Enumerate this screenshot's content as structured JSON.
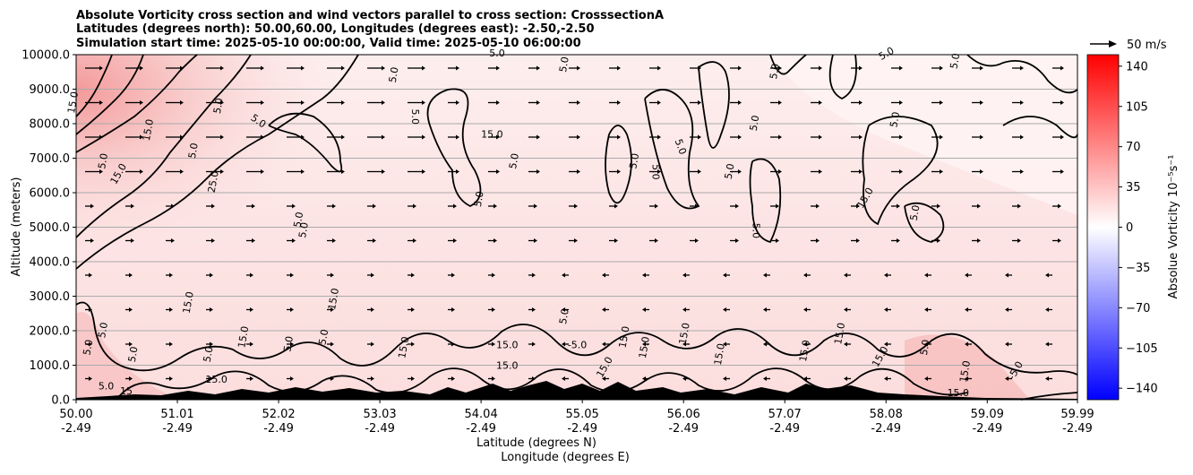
{
  "chart_data": {
    "type": "heatmap",
    "title": [
      "Absolute Vorticity cross section and wind vectors parallel to cross section: CrosssectionA",
      "Latitudes (degrees north): 50.00,60.00, Longitudes (degrees east): -2.50,-2.50",
      "Simulation start time: 2025-05-10 00:00:00, Valid time: 2025-05-10 06:00:00"
    ],
    "xlabel": "Latitude (degrees N)",
    "xlabel2": "Longitude (degrees E)",
    "ylabel": "Altitude (meters)",
    "xlim": [
      50.0,
      59.99
    ],
    "ylim": [
      0,
      10000
    ],
    "x_ticks": [
      {
        "lat": "50.00",
        "lon": "-2.49",
        "value": 50.0
      },
      {
        "lat": "51.01",
        "lon": "-2.49",
        "value": 51.01
      },
      {
        "lat": "52.02",
        "lon": "-2.49",
        "value": 52.02
      },
      {
        "lat": "53.03",
        "lon": "-2.49",
        "value": 53.03
      },
      {
        "lat": "54.04",
        "lon": "-2.49",
        "value": 54.04
      },
      {
        "lat": "55.05",
        "lon": "-2.49",
        "value": 55.05
      },
      {
        "lat": "56.06",
        "lon": "-2.49",
        "value": 56.06
      },
      {
        "lat": "57.07",
        "lon": "-2.49",
        "value": 57.07
      },
      {
        "lat": "58.08",
        "lon": "-2.49",
        "value": 58.08
      },
      {
        "lat": "59.09",
        "lon": "-2.49",
        "value": 59.09
      },
      {
        "lat": "59.99",
        "lon": "-2.49",
        "value": 59.99
      }
    ],
    "y_ticks": [
      "0.0",
      "1000.0",
      "2000.0",
      "3000.0",
      "4000.0",
      "5000.0",
      "6000.0",
      "7000.0",
      "8000.0",
      "9000.0",
      "10000.0"
    ],
    "y_tick_values": [
      0,
      1000,
      2000,
      3000,
      4000,
      5000,
      6000,
      7000,
      8000,
      9000,
      10000
    ],
    "grid": "horizontal",
    "colorbar": {
      "label": "Absolue Vorticity 10⁻⁵s⁻¹",
      "min": -150,
      "max": 150,
      "colormap": "bwr",
      "ticks": [
        "140",
        "105",
        "70",
        "35",
        "0",
        "−35",
        "−70",
        "−105",
        "−140"
      ],
      "tick_values": [
        140,
        105,
        70,
        35,
        0,
        -35,
        -70,
        -105,
        -140
      ]
    },
    "quiver_key": {
      "label": "50 m/s",
      "speed": 50
    },
    "contour_levels_labeled": [
      "5.0",
      "15.0",
      "25.0",
      "-5.0"
    ],
    "contour_labels": [
      {
        "text": "5.0",
        "x": 53.2,
        "y": 9400,
        "rot": -80
      },
      {
        "text": "5.0",
        "x": 51.8,
        "y": 8000,
        "rot": 35
      },
      {
        "text": "5.0",
        "x": 53.35,
        "y": 8200,
        "rot": 90
      },
      {
        "text": "15.0",
        "x": 54.15,
        "y": 7600,
        "rot": 0
      },
      {
        "text": "5.0",
        "x": 54.9,
        "y": 9700,
        "rot": -80
      },
      {
        "text": "5.0",
        "x": 54.2,
        "y": 9950,
        "rot": 0
      },
      {
        "text": "5.0",
        "x": 54.4,
        "y": 6900,
        "rot": -80
      },
      {
        "text": "5.0",
        "x": 54.05,
        "y": 5800,
        "rot": -80
      },
      {
        "text": "5.0",
        "x": 55.75,
        "y": 6600,
        "rot": 90
      },
      {
        "text": "5.0",
        "x": 55.6,
        "y": 6900,
        "rot": -80
      },
      {
        "text": "5.0",
        "x": 56.0,
        "y": 7300,
        "rot": 70
      },
      {
        "text": "5.0",
        "x": 56.55,
        "y": 6600,
        "rot": -80
      },
      {
        "text": "5.0",
        "x": 56.8,
        "y": 8000,
        "rot": -80
      },
      {
        "text": "5.0",
        "x": 57.0,
        "y": 9500,
        "rot": -80
      },
      {
        "text": "5.0",
        "x": 58.1,
        "y": 9950,
        "rot": -30
      },
      {
        "text": "5.0",
        "x": 58.8,
        "y": 9800,
        "rot": -80
      },
      {
        "text": "5.0",
        "x": 58.2,
        "y": 8100,
        "rot": -80
      },
      {
        "text": "15.0",
        "x": 57.9,
        "y": 5800,
        "rot": -60
      },
      {
        "text": "5.0",
        "x": 58.4,
        "y": 5400,
        "rot": -80
      },
      {
        "text": "5.0",
        "x": 56.75,
        "y": 4900,
        "rot": 90
      },
      {
        "text": "5.0",
        "x": 51.45,
        "y": 8500,
        "rot": -80
      },
      {
        "text": "15.0",
        "x": 50.75,
        "y": 7800,
        "rot": -80
      },
      {
        "text": "5.0",
        "x": 51.2,
        "y": 7200,
        "rot": -80
      },
      {
        "text": "5.0",
        "x": 50.3,
        "y": 6900,
        "rot": -80
      },
      {
        "text": "15.0",
        "x": 50.45,
        "y": 6500,
        "rot": -60
      },
      {
        "text": "25.0",
        "x": 51.4,
        "y": 6300,
        "rot": -80
      },
      {
        "text": "5.0",
        "x": 52.25,
        "y": 5200,
        "rot": -80
      },
      {
        "text": "5.0",
        "x": 52.3,
        "y": 4900,
        "rot": -80
      },
      {
        "text": "15.0",
        "x": 51.15,
        "y": 2800,
        "rot": -80
      },
      {
        "text": "15.0",
        "x": 52.6,
        "y": 2900,
        "rot": -80
      },
      {
        "text": "5.0",
        "x": 50.3,
        "y": 2000,
        "rot": -80
      },
      {
        "text": "5.0",
        "x": 50.15,
        "y": 1500,
        "rot": -80
      },
      {
        "text": "5.0",
        "x": 50.6,
        "y": 1300,
        "rot": -80
      },
      {
        "text": "15.0",
        "x": 51.7,
        "y": 1800,
        "rot": -80
      },
      {
        "text": "5.0",
        "x": 51.35,
        "y": 1300,
        "rot": -80
      },
      {
        "text": "5.0",
        "x": 52.15,
        "y": 1600,
        "rot": -80
      },
      {
        "text": "5.0",
        "x": 52.5,
        "y": 1800,
        "rot": -80
      },
      {
        "text": "15.0",
        "x": 53.3,
        "y": 1500,
        "rot": -80
      },
      {
        "text": "15.0",
        "x": 54.3,
        "y": 1500,
        "rot": 0
      },
      {
        "text": "-5.0",
        "x": 55.0,
        "y": 1500,
        "rot": 0
      },
      {
        "text": "15.0",
        "x": 55.5,
        "y": 1800,
        "rot": -80
      },
      {
        "text": "5.0",
        "x": 54.9,
        "y": 2400,
        "rot": -80
      },
      {
        "text": "15.0",
        "x": 55.7,
        "y": 1500,
        "rot": -80
      },
      {
        "text": "15.0",
        "x": 56.1,
        "y": 1900,
        "rot": -80
      },
      {
        "text": "15.0",
        "x": 56.45,
        "y": 1300,
        "rot": -80
      },
      {
        "text": "15.0",
        "x": 57.65,
        "y": 1900,
        "rot": -80
      },
      {
        "text": "15.0",
        "x": 57.3,
        "y": 1400,
        "rot": -80
      },
      {
        "text": "15.0",
        "x": 58.05,
        "y": 1200,
        "rot": -60
      },
      {
        "text": "5.0",
        "x": 58.5,
        "y": 1500,
        "rot": -80
      },
      {
        "text": "15.0",
        "x": 58.9,
        "y": 800,
        "rot": -80
      },
      {
        "text": "-5.0",
        "x": 59.4,
        "y": 800,
        "rot": -60
      },
      {
        "text": "15.0",
        "x": 58.8,
        "y": 100,
        "rot": 0
      },
      {
        "text": "5.0",
        "x": 50.3,
        "y": 300,
        "rot": 0
      },
      {
        "text": "15",
        "x": 50.5,
        "y": 150,
        "rot": 0
      },
      {
        "text": "15.0",
        "x": 51.4,
        "y": 500,
        "rot": 0
      },
      {
        "text": "15.0",
        "x": 55.3,
        "y": 900,
        "rot": -60
      },
      {
        "text": "15.0",
        "x": 54.3,
        "y": 900,
        "rot": 0
      },
      {
        "text": "15.0",
        "x": 50.0,
        "y": 8600,
        "rot": -80
      }
    ]
  }
}
